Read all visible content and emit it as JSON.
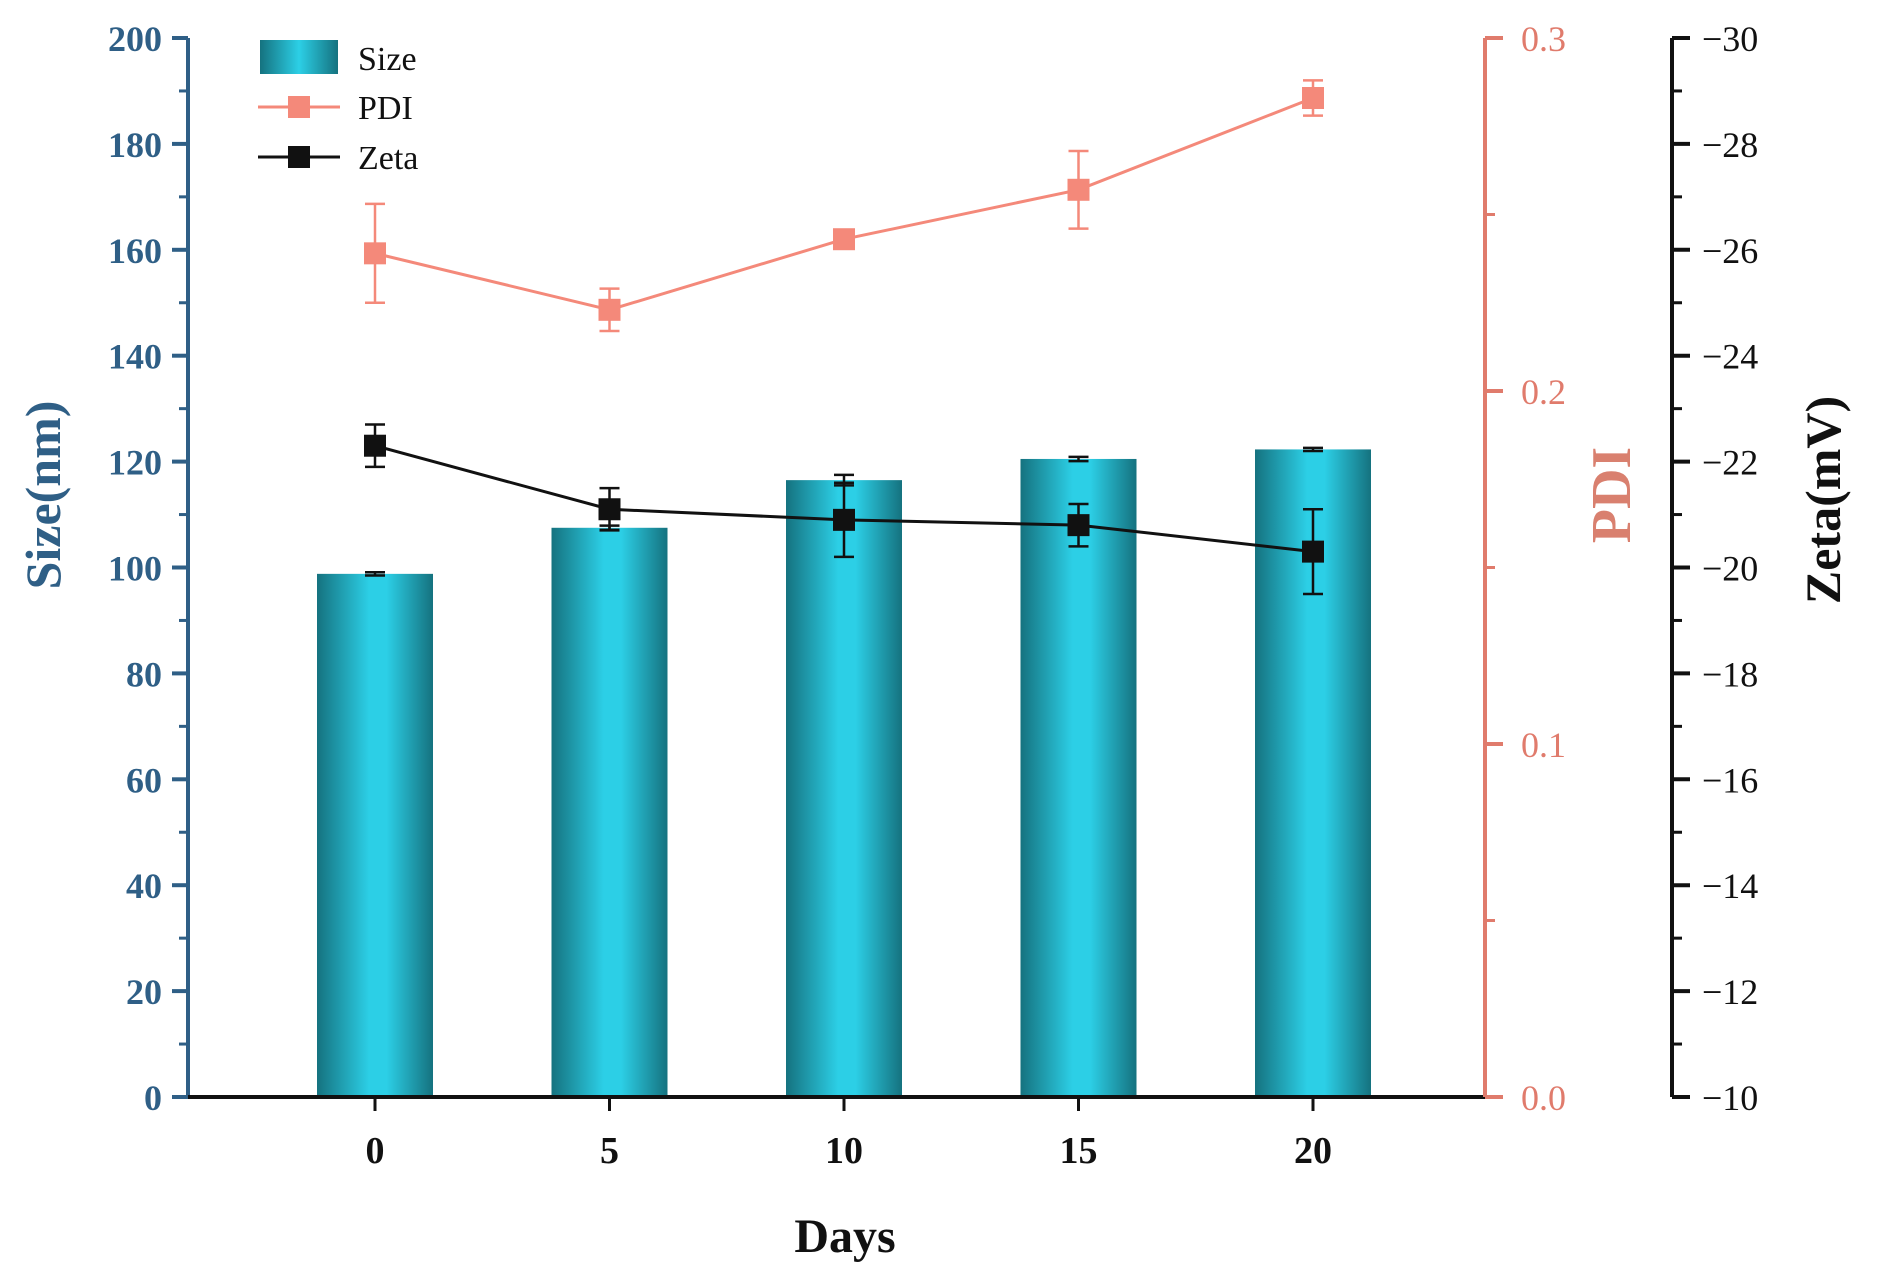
{
  "chart_data": {
    "type": "bar+line",
    "xlabel": "Days",
    "categories": [
      "0",
      "5",
      "10",
      "15",
      "20"
    ],
    "axes": {
      "size": {
        "label": "Size(nm)",
        "ylim": [
          0,
          200
        ],
        "ticks": [
          "0",
          "20",
          "40",
          "60",
          "80",
          "100",
          "120",
          "140",
          "160",
          "180",
          "200"
        ],
        "color": "#2f5f86"
      },
      "pdi": {
        "label": "PDI",
        "ylim": [
          0.0,
          0.3
        ],
        "ticks": [
          "0.0",
          "0.1",
          "0.2",
          "0.3"
        ],
        "color": "#e07b6c"
      },
      "zeta": {
        "label": "Zeta(mV)",
        "ylim": [
          -10,
          -30
        ],
        "ticks": [
          "−10",
          "−12",
          "−14",
          "−16",
          "−18",
          "−20",
          "−22",
          "−24",
          "−26",
          "−28",
          "−30"
        ],
        "color": "#111111"
      }
    },
    "series": [
      {
        "name": "Size",
        "type": "bar",
        "axis": "size",
        "values": [
          98.8,
          107.5,
          116.5,
          120.5,
          122.3
        ],
        "errors": [
          0.3,
          0.4,
          1.0,
          0.4,
          0.3
        ],
        "color": "#2ccfe6"
      },
      {
        "name": "PDI",
        "type": "line",
        "axis": "pdi",
        "values": [
          0.239,
          0.223,
          0.243,
          0.257,
          0.283
        ],
        "errors": [
          0.014,
          0.006,
          0.002,
          0.011,
          0.005
        ],
        "color": "#f4897a"
      },
      {
        "name": "Zeta",
        "type": "line",
        "axis": "zeta",
        "values": [
          -22.3,
          -21.1,
          -20.9,
          -20.8,
          -20.3
        ],
        "errors": [
          0.4,
          0.4,
          0.7,
          0.4,
          0.8
        ],
        "color": "#111111"
      }
    ],
    "legend": {
      "position": "top-left",
      "entries": [
        "Size",
        "PDI",
        "Zeta"
      ]
    }
  }
}
